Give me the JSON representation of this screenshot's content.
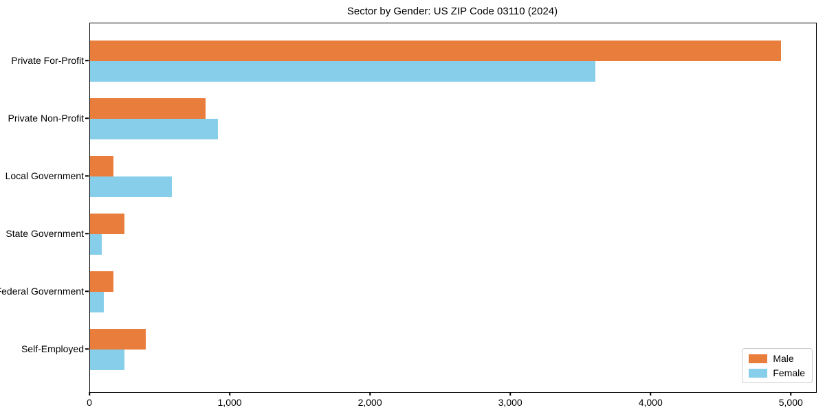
{
  "chart_data": {
    "type": "bar",
    "orientation": "horizontal",
    "title": "Sector by Gender: US ZIP Code 03110 (2024)",
    "categories": [
      "Private For-Profit",
      "Private Non-Profit",
      "Local Government",
      "State Government",
      "Federal Government",
      "Self-Employed"
    ],
    "series": [
      {
        "name": "Male",
        "color": "#e87d3c",
        "values": [
          4925,
          825,
          165,
          245,
          165,
          395
        ]
      },
      {
        "name": "Female",
        "color": "#87ceeb",
        "values": [
          3600,
          910,
          585,
          85,
          100,
          245
        ]
      }
    ],
    "xlabel": "",
    "ylabel": "",
    "xlim": [
      0,
      5175
    ],
    "xticks": [
      0,
      1000,
      2000,
      3000,
      4000,
      5000
    ],
    "xticklabels": [
      "0",
      "1,000",
      "2,000",
      "3,000",
      "4,000",
      "5,000"
    ],
    "grid": false,
    "background": "#ffffff",
    "legend": {
      "position": "lower right",
      "entries": [
        "Male",
        "Female"
      ]
    }
  }
}
